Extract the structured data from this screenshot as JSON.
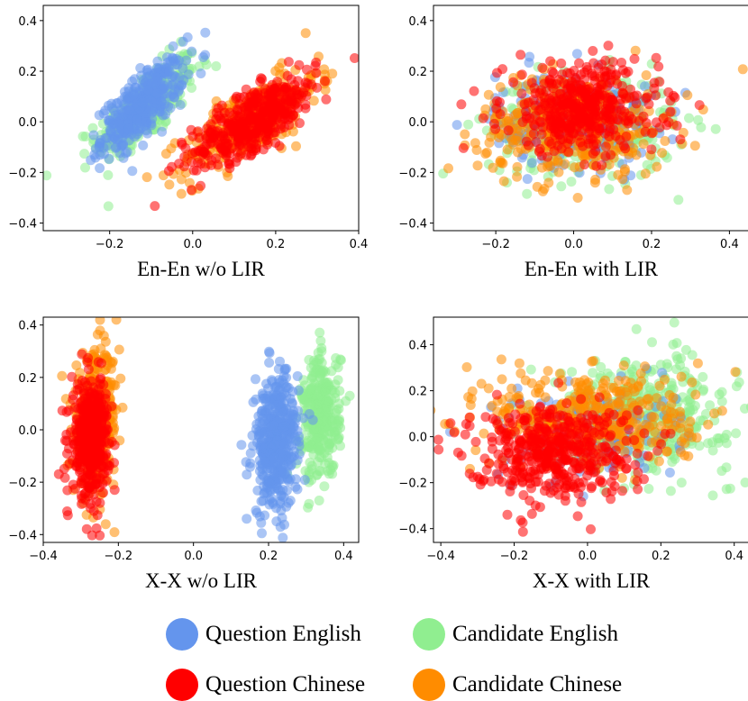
{
  "chart_data": [
    {
      "type": "scatter",
      "title": "",
      "xlabel": "En-En w/o LIR",
      "xlim": [
        -0.36,
        0.4
      ],
      "ylim": [
        -0.43,
        0.46
      ],
      "xticks": [
        -0.2,
        0.0,
        0.2,
        0.4
      ],
      "yticks": [
        -0.4,
        -0.2,
        0.0,
        0.2,
        0.4
      ],
      "clusters": [
        {
          "series": "Candidate English",
          "cx": -0.11,
          "cy": 0.06,
          "sx": 0.06,
          "sy": 0.1,
          "corr": 0.75,
          "n": 300
        },
        {
          "series": "Question English",
          "cx": -0.12,
          "cy": 0.07,
          "sx": 0.05,
          "sy": 0.09,
          "corr": 0.75,
          "n": 360
        },
        {
          "series": "Candidate Chinese",
          "cx": 0.14,
          "cy": 0.0,
          "sx": 0.08,
          "sy": 0.1,
          "corr": 0.75,
          "n": 320
        },
        {
          "series": "Question Chinese",
          "cx": 0.15,
          "cy": 0.01,
          "sx": 0.075,
          "sy": 0.09,
          "corr": 0.75,
          "n": 420
        }
      ]
    },
    {
      "type": "scatter",
      "title": "",
      "xlabel": "En-En with LIR",
      "xlim": [
        -0.36,
        0.45
      ],
      "ylim": [
        -0.43,
        0.46
      ],
      "xticks": [
        -0.2,
        0.0,
        0.2,
        0.4
      ],
      "yticks": [
        -0.4,
        -0.2,
        0.0,
        0.2,
        0.4
      ],
      "clusters": [
        {
          "series": "Candidate English",
          "cx": 0.02,
          "cy": -0.02,
          "sx": 0.12,
          "sy": 0.1,
          "corr": 0.0,
          "n": 300
        },
        {
          "series": "Question English",
          "cx": 0.0,
          "cy": 0.01,
          "sx": 0.1,
          "sy": 0.09,
          "corr": 0.0,
          "n": 250
        },
        {
          "series": "Candidate Chinese",
          "cx": 0.0,
          "cy": -0.01,
          "sx": 0.12,
          "sy": 0.1,
          "corr": 0.0,
          "n": 380
        },
        {
          "series": "Question Chinese",
          "cx": 0.02,
          "cy": 0.05,
          "sx": 0.1,
          "sy": 0.09,
          "corr": 0.0,
          "n": 420
        }
      ]
    },
    {
      "type": "scatter",
      "title": "",
      "xlabel": "X-X w/o LIR",
      "xlim": [
        -0.4,
        0.44
      ],
      "ylim": [
        -0.43,
        0.43
      ],
      "xticks": [
        -0.4,
        -0.2,
        0.0,
        0.2,
        0.4
      ],
      "yticks": [
        -0.4,
        -0.2,
        0.0,
        0.2,
        0.4
      ],
      "clusters": [
        {
          "series": "Candidate Chinese",
          "cx": -0.26,
          "cy": 0.03,
          "sx": 0.03,
          "sy": 0.13,
          "corr": 0.1,
          "n": 320
        },
        {
          "series": "Question Chinese",
          "cx": -0.275,
          "cy": -0.03,
          "sx": 0.025,
          "sy": 0.11,
          "corr": 0.1,
          "n": 420
        },
        {
          "series": "Candidate English",
          "cx": 0.34,
          "cy": 0.05,
          "sx": 0.025,
          "sy": 0.12,
          "corr": 0.1,
          "n": 320
        },
        {
          "series": "Question English",
          "cx": 0.22,
          "cy": -0.05,
          "sx": 0.03,
          "sy": 0.13,
          "corr": 0.1,
          "n": 420
        }
      ]
    },
    {
      "type": "scatter",
      "title": "",
      "xlabel": "X-X with LIR",
      "xlim": [
        -0.42,
        0.44
      ],
      "ylim": [
        -0.46,
        0.52
      ],
      "xticks": [
        -0.4,
        -0.2,
        0.0,
        0.2,
        0.4
      ],
      "yticks": [
        -0.4,
        -0.2,
        0.0,
        0.2,
        0.4
      ],
      "clusters": [
        {
          "series": "Candidate English",
          "cx": 0.15,
          "cy": 0.1,
          "sx": 0.12,
          "sy": 0.12,
          "corr": 0.0,
          "n": 380
        },
        {
          "series": "Question English",
          "cx": 0.0,
          "cy": 0.02,
          "sx": 0.12,
          "sy": 0.1,
          "corr": 0.0,
          "n": 150
        },
        {
          "series": "Candidate Chinese",
          "cx": 0.02,
          "cy": 0.08,
          "sx": 0.14,
          "sy": 0.11,
          "corr": 0.0,
          "n": 400
        },
        {
          "series": "Question Chinese",
          "cx": -0.1,
          "cy": -0.06,
          "sx": 0.11,
          "sy": 0.1,
          "corr": 0.0,
          "n": 450
        }
      ]
    }
  ],
  "legend": [
    {
      "label": "Question English",
      "color": "#6495ed"
    },
    {
      "label": "Candidate English",
      "color": "#90ee90"
    },
    {
      "label": "Question Chinese",
      "color": "#ff0000"
    },
    {
      "label": "Candidate Chinese",
      "color": "#ff8c00"
    }
  ],
  "series_colors": {
    "Question English": "#6495ed",
    "Candidate English": "#90ee90",
    "Question Chinese": "#ff0000",
    "Candidate Chinese": "#ff8c00"
  }
}
